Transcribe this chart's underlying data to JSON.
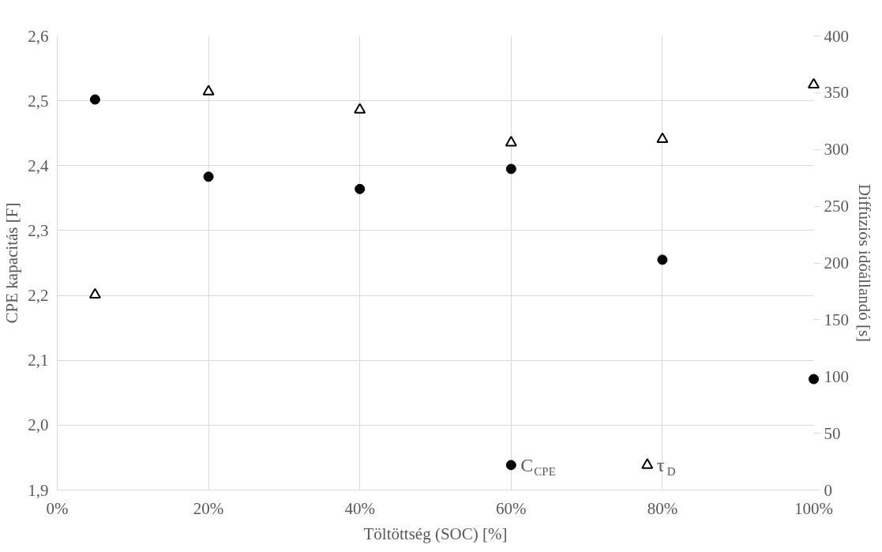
{
  "chart_data": {
    "type": "scatter",
    "xlabel": "Töltöttség (SOC) [%]",
    "ylabel": "CPE kapacitás [F]",
    "y2label": "Diffúziós időállandó [s]",
    "x": [
      5,
      20,
      40,
      60,
      80,
      100
    ],
    "series": [
      {
        "name": "C$_{CPE}$",
        "color": "#000000",
        "marker": "circle",
        "values": [
          2.502,
          2.383,
          2.364,
          2.395,
          2.255,
          2.071
        ]
      },
      {
        "name": "τ$_{D}$",
        "color": "#000000",
        "marker": "triangle",
        "axis": "y2",
        "values": [
          172,
          351,
          335,
          306,
          309,
          357
        ]
      }
    ],
    "xlim": [
      0,
      100
    ],
    "xticks": [
      {
        "value": 0,
        "label": "0%"
      },
      {
        "value": 20,
        "label": "20%"
      },
      {
        "value": 40,
        "label": "40%"
      },
      {
        "value": 60,
        "label": "60%"
      },
      {
        "value": 80,
        "label": "80%"
      },
      {
        "value": 100,
        "label": "100%"
      }
    ],
    "ylim": [
      1.9,
      2.6
    ],
    "yticks": [
      {
        "value": 1.9,
        "label": "1,9"
      },
      {
        "value": 2.0,
        "label": "2,0"
      },
      {
        "value": 2.1,
        "label": "2,1"
      },
      {
        "value": 2.2,
        "label": "2,2"
      },
      {
        "value": 2.3,
        "label": "2,3"
      },
      {
        "value": 2.4,
        "label": "2,4"
      },
      {
        "value": 2.5,
        "label": "2,5"
      },
      {
        "value": 2.6,
        "label": "2,6"
      }
    ],
    "y2lim": [
      0,
      400
    ],
    "y2ticks": [
      0,
      50,
      100,
      150,
      200,
      250,
      300,
      350,
      400
    ],
    "grid": true,
    "legend": "bottom right"
  }
}
